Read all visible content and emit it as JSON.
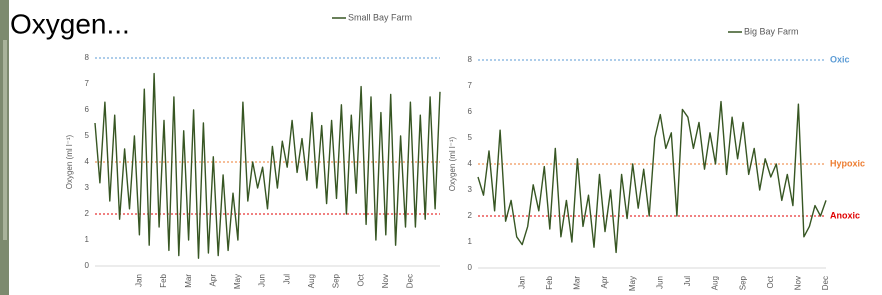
{
  "slide_title": "Oxygen...",
  "chart_data": [
    {
      "type": "line",
      "ylabel": "Oxygen (ml l⁻¹)",
      "ylim": [
        0,
        8
      ],
      "yticks": [
        0,
        1,
        2,
        3,
        4,
        5,
        6,
        7,
        8
      ],
      "categories": [
        null,
        null,
        null,
        null,
        null,
        null,
        null,
        null,
        null,
        "Jan",
        null,
        null,
        null,
        null,
        "Feb",
        null,
        null,
        null,
        null,
        "Mar",
        null,
        null,
        null,
        null,
        "Apr",
        null,
        null,
        null,
        null,
        "May",
        null,
        null,
        null,
        null,
        "Jun",
        null,
        null,
        null,
        null,
        "Jul",
        null,
        null,
        null,
        null,
        "Aug",
        null,
        null,
        null,
        null,
        "Sep",
        null,
        null,
        null,
        null,
        "Oct",
        null,
        null,
        null,
        null,
        "Nov",
        null,
        null,
        null,
        null,
        "Dec",
        null,
        null,
        null,
        null,
        null,
        null
      ],
      "series": [
        {
          "name": "Small Bay Farm",
          "color": "#375623",
          "values": [
            5.5,
            3.2,
            6.3,
            2.5,
            5.8,
            1.8,
            4.5,
            2.2,
            5.0,
            1.2,
            6.8,
            0.8,
            7.4,
            1.5,
            5.6,
            0.6,
            6.5,
            0.4,
            5.2,
            1.0,
            6.0,
            0.3,
            5.5,
            0.5,
            4.2,
            0.4,
            3.5,
            0.6,
            2.8,
            1.0,
            6.3,
            2.5,
            4.0,
            3.0,
            3.8,
            2.2,
            4.6,
            3.0,
            4.8,
            3.8,
            5.6,
            3.6,
            4.9,
            3.3,
            5.9,
            3.0,
            5.4,
            2.4,
            5.6,
            2.6,
            6.2,
            2.0,
            5.8,
            2.8,
            6.9,
            1.6,
            6.5,
            1.0,
            5.9,
            1.2,
            6.6,
            0.8,
            5.0,
            1.5,
            6.3,
            1.5,
            5.8,
            1.8,
            6.5,
            2.2,
            6.7
          ]
        }
      ],
      "thresholds": [
        {
          "value": 8,
          "color": "#5b9bd5"
        },
        {
          "value": 4,
          "color": "#ed7d31"
        },
        {
          "value": 2,
          "color": "#e00000"
        }
      ]
    },
    {
      "type": "line",
      "ylabel": "Oxygen (ml l⁻¹)",
      "ylim": [
        0,
        8
      ],
      "yticks": [
        0,
        1,
        2,
        3,
        4,
        5,
        6,
        7,
        8
      ],
      "categories": [
        null,
        null,
        null,
        null,
        null,
        null,
        null,
        null,
        "Jan",
        null,
        null,
        null,
        null,
        "Feb",
        null,
        null,
        null,
        null,
        "Mar",
        null,
        null,
        null,
        null,
        "Apr",
        null,
        null,
        null,
        null,
        "May",
        null,
        null,
        null,
        null,
        "Jun",
        null,
        null,
        null,
        null,
        "Jul",
        null,
        null,
        null,
        null,
        "Aug",
        null,
        null,
        null,
        null,
        "Sep",
        null,
        null,
        null,
        null,
        "Oct",
        null,
        null,
        null,
        null,
        "Nov",
        null,
        null,
        null,
        null,
        "Dec"
      ],
      "series": [
        {
          "name": "Big Bay Farm",
          "color": "#375623",
          "values": [
            3.5,
            2.8,
            4.5,
            2.2,
            5.3,
            1.8,
            2.6,
            1.2,
            0.9,
            1.6,
            3.2,
            2.2,
            3.9,
            1.5,
            4.6,
            1.2,
            2.6,
            1.0,
            4.2,
            1.6,
            2.8,
            0.8,
            3.6,
            1.4,
            3.0,
            0.6,
            3.6,
            1.9,
            4.0,
            2.3,
            3.8,
            2.0,
            5.0,
            5.9,
            4.6,
            5.2,
            2.0,
            6.1,
            5.8,
            4.6,
            5.6,
            3.8,
            5.2,
            4.0,
            6.4,
            3.6,
            5.8,
            4.2,
            5.6,
            3.6,
            4.6,
            3.0,
            4.2,
            3.5,
            4.0,
            2.6,
            3.6,
            2.4,
            6.3,
            1.2,
            1.6,
            2.4,
            2.0,
            2.6
          ]
        }
      ],
      "thresholds": [
        {
          "value": 8,
          "color": "#5b9bd5",
          "label": "Oxic"
        },
        {
          "value": 4,
          "color": "#ed7d31",
          "label": "Hypoxic"
        },
        {
          "value": 2,
          "color": "#e00000",
          "label": "Anoxic"
        }
      ]
    }
  ]
}
